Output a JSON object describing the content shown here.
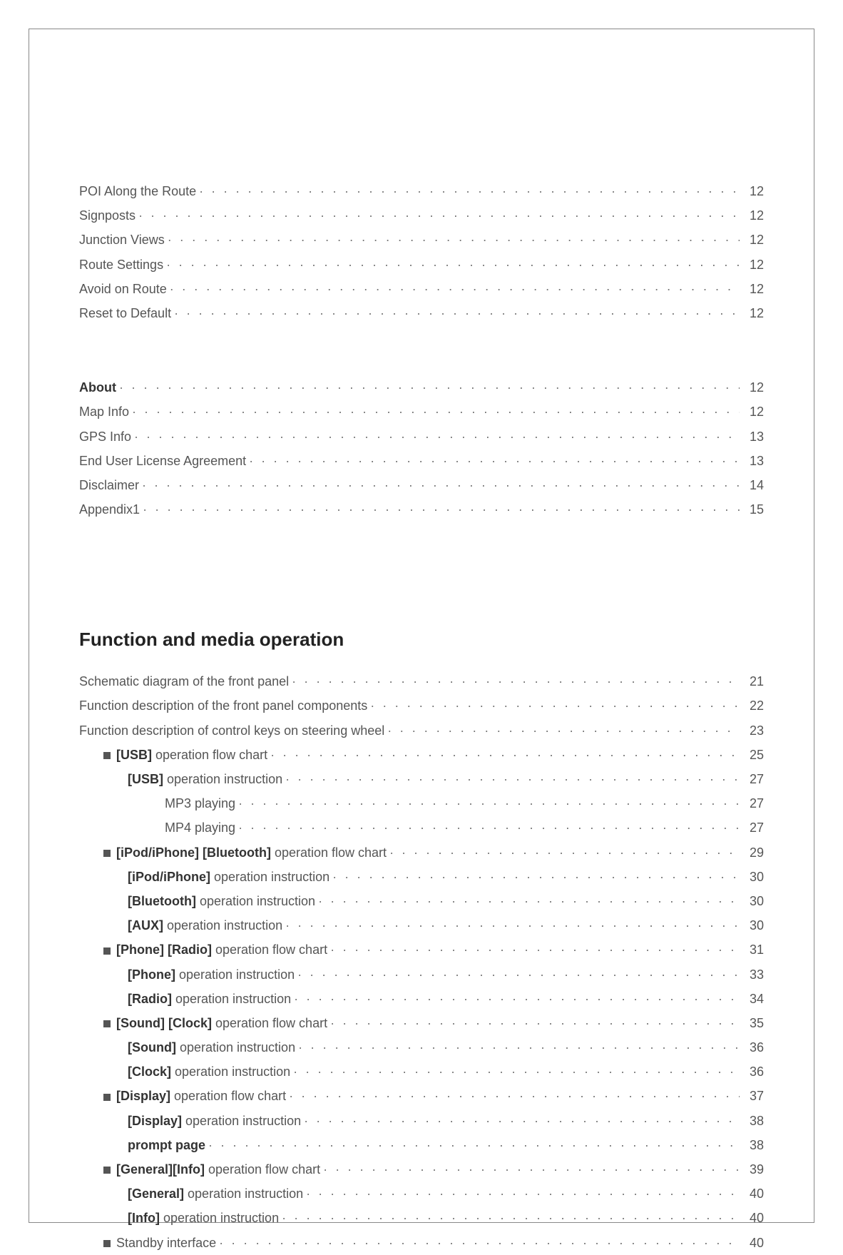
{
  "top_block": [
    {
      "label_plain": "POI Along the Route",
      "page": "12",
      "indent": 0
    },
    {
      "label_plain": "Signposts",
      "page": "12",
      "indent": 0
    },
    {
      "label_plain": "Junction Views",
      "page": "12",
      "indent": 0
    },
    {
      "label_plain": "Route Settings",
      "page": "12",
      "indent": 0
    },
    {
      "label_plain": "Avoid on Route",
      "page": "12",
      "indent": 0
    },
    {
      "label_plain": "Reset to Default",
      "page": "12",
      "indent": 0
    }
  ],
  "about_block": [
    {
      "label_bold": "About",
      "page": "12",
      "indent": 0
    },
    {
      "label_plain": "Map Info",
      "page": "12",
      "indent": 0
    },
    {
      "label_plain": "GPS Info",
      "page": "13",
      "indent": 0
    },
    {
      "label_plain": "End User License Agreement",
      "page": "13",
      "indent": 0
    },
    {
      "label_plain": "Disclaimer",
      "page": "14",
      "indent": 0
    },
    {
      "label_plain": "Appendix1",
      "page": "15",
      "indent": 0
    }
  ],
  "heading": "Function and media operation",
  "function_block": [
    {
      "label_plain": "Schematic diagram of the front panel",
      "page": "21",
      "indent": 0
    },
    {
      "label_plain": "Function description of the front panel components",
      "page": "22",
      "indent": 0
    },
    {
      "label_plain": "Function description of control keys on steering wheel",
      "page": "23",
      "indent": 0
    },
    {
      "bullet": true,
      "label_bold": "[USB]",
      "label_plain": " operation flow chart",
      "page": "25",
      "indent": 1
    },
    {
      "label_bold": "[USB]",
      "label_plain": " operation instruction",
      "page": "27",
      "indent": 2
    },
    {
      "label_plain": "MP3 playing",
      "page": "27",
      "indent": 3
    },
    {
      "label_plain": "MP4 playing",
      "page": "27",
      "indent": 3
    },
    {
      "bullet": true,
      "label_bold": "[iPod/iPhone] [Bluetooth]",
      "label_plain": " operation flow chart",
      "page": "29",
      "indent": 1
    },
    {
      "label_bold": "[iPod/iPhone]",
      "label_plain": " operation instruction",
      "page": "30",
      "indent": 2
    },
    {
      "label_bold": "[Bluetooth]",
      "label_plain": " operation instruction",
      "page": "30",
      "indent": 2
    },
    {
      "label_bold": "[AUX]",
      "label_plain": " operation instruction",
      "page": "30",
      "indent": 2
    },
    {
      "bullet": true,
      "label_bold": "[Phone] [Radio]",
      "label_plain": " operation flow chart",
      "page": "31",
      "indent": 1
    },
    {
      "label_bold": "[Phone]",
      "label_plain": " operation instruction",
      "page": "33",
      "indent": 2
    },
    {
      "label_bold": "[Radio]",
      "label_plain": " operation instruction",
      "page": "34",
      "indent": 2
    },
    {
      "bullet": true,
      "label_bold": "[Sound] [Clock]",
      "label_plain": " operation flow chart",
      "page": "35",
      "indent": 1
    },
    {
      "label_bold": "[Sound]",
      "label_plain": " operation instruction",
      "page": "36",
      "indent": 2
    },
    {
      "label_bold": "[Clock]",
      "label_plain": " operation instruction",
      "page": "36",
      "indent": 2
    },
    {
      "bullet": true,
      "label_bold": "[Display]",
      "label_plain": " operation flow chart",
      "page": "37",
      "indent": 1
    },
    {
      "label_bold": "[Display]",
      "label_plain": " operation instruction",
      "page": "38",
      "indent": 2
    },
    {
      "label_bold": "prompt page",
      "page": "38",
      "indent": 2
    },
    {
      "bullet": true,
      "label_bold": "[General][Info]",
      "label_plain": " operation flow chart",
      "page": "39",
      "indent": 1
    },
    {
      "label_bold": "[General]",
      "label_plain": " operation instruction",
      "page": "40",
      "indent": 2
    },
    {
      "label_bold": "[Info]",
      "label_plain": " operation instruction",
      "page": "40",
      "indent": 2
    },
    {
      "bullet": true,
      "label_plain": "Standby interface",
      "page": "40",
      "indent": 1
    }
  ],
  "dot_fill": "· · · · · · · · · · · · · · · · · · · · · · · · · · · · · · · · · · · · · · · · · · · · · · · · · · · · · · · · · · · · · · · · · · · · · · · · · · · · · · · · · · · · · · · · · · · · · · · · · · · · · · · · · · · · · · · · · · · · · · · · · · · · · · · · · · · · · · · · · · · · · · · · · · · · · ·"
}
